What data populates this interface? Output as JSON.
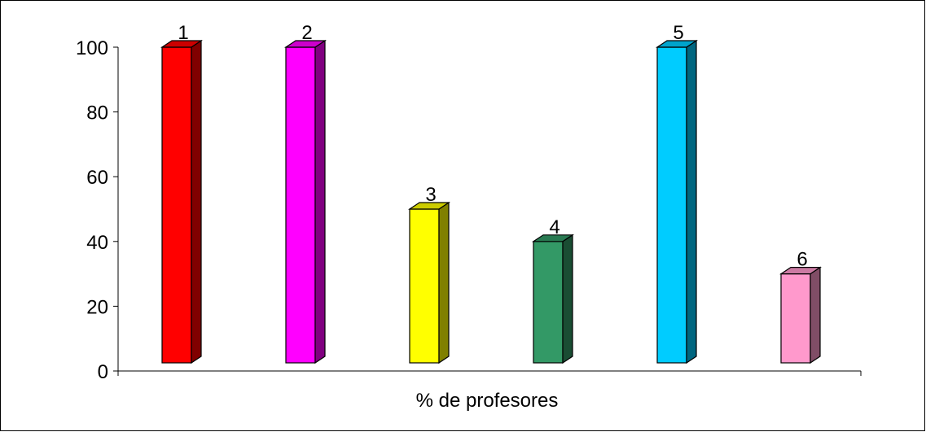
{
  "chart_data": {
    "type": "bar",
    "categories": [
      "1",
      "2",
      "3",
      "4",
      "5",
      "6"
    ],
    "values": [
      100,
      100,
      50,
      40,
      100,
      30
    ],
    "data_labels": [
      "1",
      "2",
      "3",
      "4",
      "5",
      "6"
    ],
    "colors": [
      "#ff0000",
      "#ff00ff",
      "#ffff00",
      "#339966",
      "#00ccff",
      "#ff99cc"
    ],
    "xlabel": "% de profesores",
    "ylabel": "",
    "ylim": [
      0,
      100
    ],
    "yticks": [
      0,
      20,
      40,
      60,
      80,
      100
    ],
    "grid": false,
    "legend": "none",
    "bar_style": "3d"
  }
}
